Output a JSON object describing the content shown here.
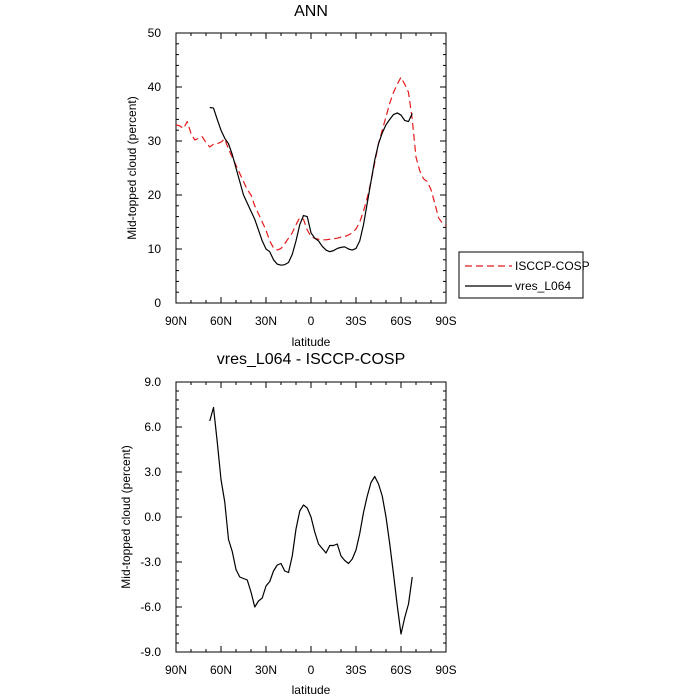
{
  "chart_data": [
    {
      "type": "line",
      "title": "ANN",
      "xlabel": "latitude",
      "ylabel": "Mid-topped cloud (percent)",
      "xlim": [
        90,
        -90
      ],
      "ylim": [
        0,
        50
      ],
      "x_ticks": [
        90,
        60,
        30,
        0,
        -30,
        -60,
        -90
      ],
      "x_tick_labels": [
        "90N",
        "60N",
        "30N",
        "0",
        "30S",
        "60S",
        "90S"
      ],
      "y_ticks": [
        0,
        10,
        20,
        30,
        40,
        50
      ],
      "y_tick_labels": [
        "0",
        "10",
        "20",
        "30",
        "40",
        "50"
      ],
      "legend": {
        "placement": "right",
        "entries": [
          "ISCCP-COSP",
          "vres_L064"
        ]
      },
      "series": [
        {
          "name": "ISCCP-COSP",
          "color": "#e41a1c",
          "dash": "dashed",
          "x": [
            90,
            87.5,
            85,
            82.5,
            80,
            77.5,
            75,
            72.5,
            70,
            67.5,
            65,
            62.5,
            60,
            57.5,
            55,
            52.5,
            50,
            47.5,
            45,
            42.5,
            40,
            37.5,
            35,
            32.5,
            30,
            27.5,
            25,
            22.5,
            20,
            17.5,
            15,
            12.5,
            10,
            7.5,
            5,
            2.5,
            0,
            -2.5,
            -5,
            -7.5,
            -10,
            -12.5,
            -15,
            -17.5,
            -20,
            -22.5,
            -25,
            -27.5,
            -30,
            -32.5,
            -35,
            -37.5,
            -40,
            -42.5,
            -45,
            -47.5,
            -50,
            -52.5,
            -55,
            -57.5,
            -60,
            -62.5,
            -65,
            -67.5,
            -70,
            -72.5,
            -75,
            -77.5,
            -80,
            -82.5,
            -85,
            -87.5,
            -90
          ],
          "values": [
            33,
            32.8,
            32.3,
            33.6,
            31.4,
            30.2,
            30.5,
            30.8,
            29.7,
            28.9,
            29.4,
            29.5,
            29.8,
            30.4,
            28.5,
            27.0,
            25.5,
            24.0,
            22.5,
            21.0,
            20.0,
            18.0,
            16.5,
            15.0,
            13.5,
            11.5,
            10.2,
            9.8,
            10.1,
            11.0,
            12.0,
            13.0,
            14.5,
            15.8,
            15.5,
            13.5,
            12.3,
            12.0,
            11.8,
            11.7,
            11.7,
            11.8,
            11.9,
            12.0,
            12.2,
            12.3,
            12.6,
            13.0,
            13.7,
            15.0,
            17.0,
            19.5,
            22.5,
            26.0,
            29.5,
            32.0,
            34.5,
            37.0,
            39.0,
            40.5,
            41.8,
            40.5,
            39.0,
            34.0,
            27.0,
            24.5,
            23.0,
            22.5,
            21.0,
            18.5,
            15.8,
            14.8,
            14.3
          ]
        },
        {
          "name": "vres_L064",
          "color": "#000000",
          "dash": "solid",
          "x": [
            67.5,
            65,
            62.5,
            60,
            57.5,
            55,
            52.5,
            50,
            47.5,
            45,
            42.5,
            40,
            37.5,
            35,
            32.5,
            30,
            27.5,
            25,
            22.5,
            20,
            17.5,
            15,
            12.5,
            10,
            7.5,
            5,
            2.5,
            0,
            -2.5,
            -5,
            -7.5,
            -10,
            -12.5,
            -15,
            -17.5,
            -20,
            -22.5,
            -25,
            -27.5,
            -30,
            -32.5,
            -35,
            -37.5,
            -40,
            -42.5,
            -45,
            -47.5,
            -50,
            -52.5,
            -55,
            -57.5,
            -60,
            -62.5,
            -65,
            -67.5
          ],
          "values": [
            36.2,
            36.1,
            34.0,
            32.0,
            30.5,
            29.5,
            27.5,
            25.0,
            22.5,
            20.0,
            18.5,
            17.0,
            15.5,
            13.5,
            11.5,
            10.0,
            9.5,
            8.0,
            7.2,
            7.0,
            7.1,
            7.5,
            9.0,
            11.5,
            14.5,
            16.2,
            16.0,
            13.0,
            12.0,
            11.5,
            10.5,
            9.8,
            9.5,
            9.7,
            10.1,
            10.3,
            10.4,
            10.0,
            9.8,
            10.1,
            11.5,
            14.5,
            18.5,
            22.5,
            26.5,
            29.5,
            31.5,
            33.0,
            34.0,
            34.9,
            35.2,
            34.8,
            33.8,
            33.6,
            35.1
          ]
        }
      ]
    },
    {
      "type": "line",
      "title": "vres_L064 - ISCCP-COSP",
      "xlabel": "latitude",
      "ylabel": "Mid-topped cloud (percent)",
      "xlim": [
        90,
        -90
      ],
      "ylim": [
        -9,
        9
      ],
      "x_ticks": [
        90,
        60,
        30,
        0,
        -30,
        -60,
        -90
      ],
      "x_tick_labels": [
        "90N",
        "60N",
        "30N",
        "0",
        "30S",
        "60S",
        "90S"
      ],
      "y_ticks": [
        9,
        6,
        3,
        0,
        -3,
        -6,
        -9
      ],
      "y_tick_labels": [
        "9.0",
        "6.0",
        "3.0",
        "0.0",
        "-3.0",
        "-6.0",
        "-9.0"
      ],
      "series": [
        {
          "color": "#000000",
          "dash": "solid",
          "x": [
            67.5,
            65,
            62.5,
            60,
            57.5,
            55,
            52.5,
            50,
            47.5,
            45,
            42.5,
            40,
            37.5,
            35,
            32.5,
            30,
            27.5,
            25,
            22.5,
            20,
            17.5,
            15,
            12.5,
            10,
            7.5,
            5,
            2.5,
            0,
            -2.5,
            -5,
            -7.5,
            -10,
            -12.5,
            -15,
            -17.5,
            -20,
            -22.5,
            -25,
            -27.5,
            -30,
            -32.5,
            -35,
            -37.5,
            -40,
            -42.5,
            -45,
            -47.5,
            -50,
            -52.5,
            -55,
            -57.5,
            -60,
            -62.5,
            -65,
            -67.5
          ],
          "values": [
            6.4,
            7.3,
            5.0,
            2.5,
            1.0,
            -1.5,
            -2.3,
            -3.5,
            -4.0,
            -4.1,
            -4.2,
            -5.0,
            -6.0,
            -5.6,
            -5.4,
            -4.6,
            -4.3,
            -3.6,
            -3.2,
            -3.1,
            -3.6,
            -3.7,
            -2.6,
            -0.8,
            0.4,
            0.8,
            0.6,
            0.0,
            -1.0,
            -1.8,
            -2.1,
            -2.4,
            -1.9,
            -1.9,
            -1.8,
            -2.6,
            -2.9,
            -3.1,
            -2.8,
            -2.2,
            -1.1,
            0.3,
            1.4,
            2.3,
            2.7,
            2.2,
            1.4,
            0.0,
            -1.8,
            -3.8,
            -5.9,
            -7.8,
            -6.7,
            -5.8,
            -4.0
          ]
        }
      ]
    }
  ]
}
